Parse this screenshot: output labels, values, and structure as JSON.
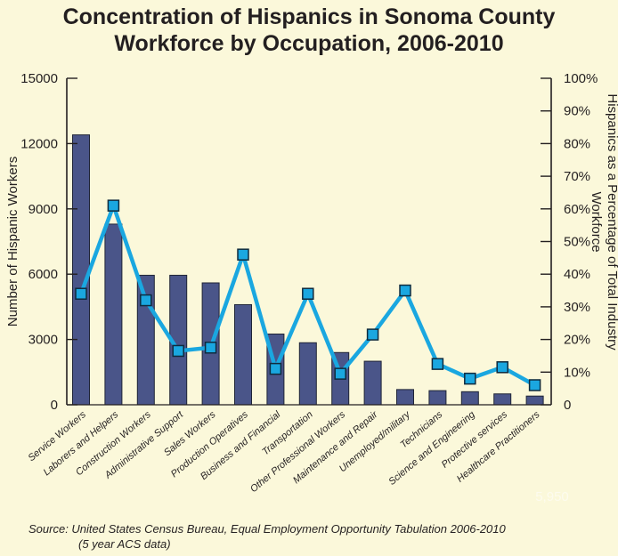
{
  "title_lines": [
    "Concentration of Hispanics in Sonoma County",
    "Workforce by Occupation, 2006-2010"
  ],
  "source_lines": [
    "Source: United States Census Bureau, Equal Employment Opportunity Tabulation 2006-2010",
    "(5 year ACS data)"
  ],
  "watermarks": [
    "5,950"
  ],
  "colors": {
    "background": "#fbf8da",
    "bars": "#4a5589",
    "bar_edge": "#1f2436",
    "line": "#1aa7e0",
    "marker_edge": "#0f2b3e",
    "axis": "#231f20"
  },
  "chart_data": {
    "type": "bar+line",
    "title": "Concentration of Hispanics in Sonoma County Workforce by Occupation, 2006-2010",
    "categories": [
      "Service Workers",
      "Laborers and Helpers",
      "Construction Workers",
      "Administrative Support",
      "Sales Workers",
      "Production Operatives",
      "Business and Financial",
      "Transportation",
      "Other Professional Workers",
      "Maintenance and Repair",
      "Unemployed/military",
      "Technicians",
      "Science and Engineering",
      "Protective services",
      "Healthcare Practitioners"
    ],
    "ylabel": "Number of Hispanic Workers",
    "ylabel_right": "Hispanics as a Percentage of Total Industry Workforce",
    "ylim": [
      0,
      15000
    ],
    "yticks": [
      "0",
      "3000",
      "6000",
      "9000",
      "12000",
      "15000"
    ],
    "ylim_right": [
      0,
      100
    ],
    "yticks_right": [
      "0",
      "10%",
      "20%",
      "30%",
      "40%",
      "50%",
      "60%",
      "70%",
      "80%",
      "90%",
      "100%"
    ],
    "grid": false,
    "legend": "none",
    "series": [
      {
        "type": "bar",
        "axis": "left",
        "values": [
          12400,
          8300,
          5950,
          5950,
          5600,
          4600,
          3250,
          2850,
          2400,
          2000,
          700,
          650,
          600,
          500,
          400
        ]
      },
      {
        "type": "line",
        "axis": "right",
        "values": [
          34,
          61,
          32,
          16.5,
          17.5,
          46,
          11,
          34,
          9.5,
          21.5,
          35,
          12.5,
          8,
          11.5,
          6
        ]
      }
    ]
  }
}
